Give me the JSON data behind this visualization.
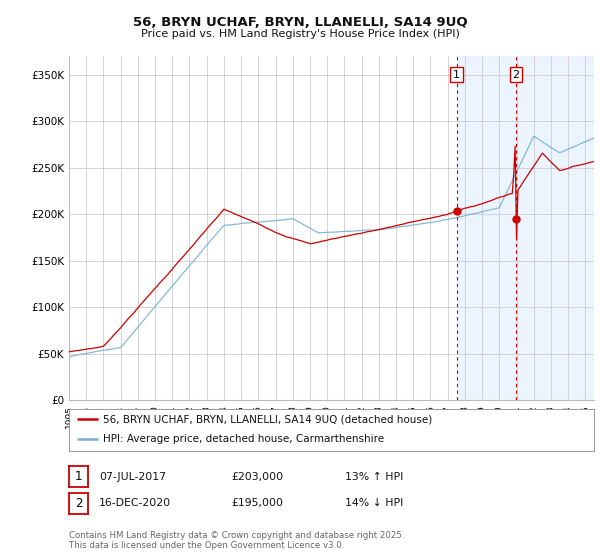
{
  "title1": "56, BRYN UCHAF, BRYN, LLANELLI, SA14 9UQ",
  "title2": "Price paid vs. HM Land Registry's House Price Index (HPI)",
  "ylabel_ticks": [
    "£0",
    "£50K",
    "£100K",
    "£150K",
    "£200K",
    "£250K",
    "£300K",
    "£350K"
  ],
  "ytick_values": [
    0,
    50000,
    100000,
    150000,
    200000,
    250000,
    300000,
    350000
  ],
  "ylim": [
    0,
    370000
  ],
  "xlim_start": 1995,
  "xlim_end": 2025.5,
  "marker1_x": 2017.52,
  "marker1_y": 203000,
  "marker2_x": 2020.96,
  "marker2_y": 195000,
  "legend_line1_color": "#cc0000",
  "legend_line1_label": "56, BRYN UCHAF, BRYN, LLANELLI, SA14 9UQ (detached house)",
  "legend_line2_color": "#7ab0d4",
  "legend_line2_label": "HPI: Average price, detached house, Carmarthenshire",
  "annotation1_date": "07-JUL-2017",
  "annotation1_price": "£203,000",
  "annotation1_hpi": "13% ↑ HPI",
  "annotation2_date": "16-DEC-2020",
  "annotation2_price": "£195,000",
  "annotation2_hpi": "14% ↓ HPI",
  "footer": "Contains HM Land Registry data © Crown copyright and database right 2025.\nThis data is licensed under the Open Government Licence v3.0.",
  "background_color": "#ffffff",
  "plot_bg_color": "#ffffff",
  "grid_color": "#cccccc",
  "shade_color": "#ddeeff",
  "vline_color": "#cc0000"
}
